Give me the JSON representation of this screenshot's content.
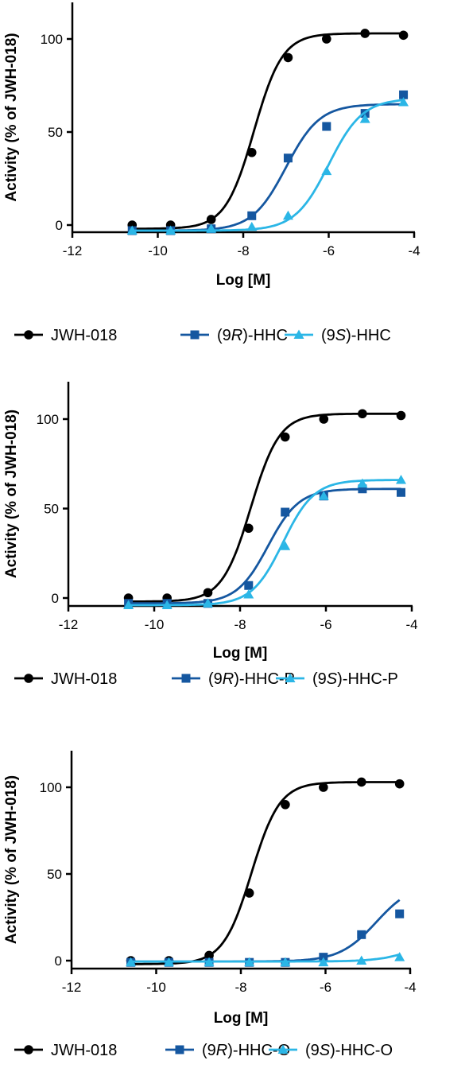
{
  "colors": {
    "jwh": "#000000",
    "r": "#1557a0",
    "s": "#2bb6e6"
  },
  "chart_data": [
    {
      "type": "scatter",
      "xlabel": "Log [M]",
      "ylabel": "Activity (% of JWH-018)",
      "xlim": [
        -12,
        -4
      ],
      "ylim": [
        -5,
        120
      ],
      "xticks": [
        "-12",
        "-10",
        "-8",
        "-6",
        "-4"
      ],
      "yticks": [
        "0",
        "50",
        "100"
      ],
      "x": [
        -10.6,
        -9.7,
        -8.75,
        -7.8,
        -6.95,
        -6.05,
        -5.15,
        -4.25
      ],
      "series": [
        {
          "name": "JWH-018",
          "marker": "circle",
          "values": [
            0,
            0,
            3,
            39,
            90,
            100,
            103,
            102
          ],
          "fit": {
            "bottom": -2,
            "top": 103,
            "logec50": -7.75,
            "hill": 1.3
          }
        },
        {
          "name": "(9R)-HHC",
          "name_parts": [
            "(9",
            "R",
            ")-HHC"
          ],
          "marker": "square",
          "values": [
            -3,
            -3,
            -2,
            5,
            36,
            53,
            60,
            70
          ],
          "fit": {
            "bottom": -3,
            "top": 65,
            "logec50": -7.0,
            "hill": 1.1
          }
        },
        {
          "name": "(9S)-HHC",
          "name_parts": [
            "(9",
            "S",
            ")-HHC"
          ],
          "marker": "triangle",
          "values": [
            -3,
            -3,
            -2,
            -1,
            5,
            29,
            57,
            66
          ],
          "fit": {
            "bottom": -3,
            "top": 68,
            "logec50": -6.0,
            "hill": 1.1
          }
        }
      ]
    },
    {
      "type": "scatter",
      "xlabel": "Log [M]",
      "ylabel": "Activity (% of JWH-018)",
      "xlim": [
        -12,
        -4
      ],
      "ylim": [
        -5,
        120
      ],
      "xticks": [
        "-12",
        "-10",
        "-8",
        "-6",
        "-4"
      ],
      "yticks": [
        "0",
        "50",
        "100"
      ],
      "x": [
        -10.6,
        -9.7,
        -8.75,
        -7.8,
        -6.95,
        -6.05,
        -5.15,
        -4.25
      ],
      "series": [
        {
          "name": "JWH-018",
          "marker": "circle",
          "values": [
            0,
            0,
            3,
            39,
            90,
            100,
            103,
            102
          ],
          "fit": {
            "bottom": -2,
            "top": 103,
            "logec50": -7.75,
            "hill": 1.3
          }
        },
        {
          "name": "(9R)-HHC-P",
          "name_parts": [
            "(9",
            "R",
            ")-HHC-P"
          ],
          "marker": "square",
          "values": [
            -3,
            -3,
            -3,
            7,
            48,
            57,
            61,
            59
          ],
          "fit": {
            "bottom": -3,
            "top": 61,
            "logec50": -7.35,
            "hill": 1.2
          }
        },
        {
          "name": "(9S)-HHC-P",
          "name_parts": [
            "(9",
            "S",
            ")-HHC-P"
          ],
          "marker": "triangle",
          "values": [
            -4,
            -4,
            -3,
            2,
            29,
            57,
            64,
            66
          ],
          "fit": {
            "bottom": -4,
            "top": 66,
            "logec50": -7.0,
            "hill": 1.2
          }
        }
      ]
    },
    {
      "type": "scatter",
      "xlabel": "Log [M]",
      "ylabel": "Activity (% of JWH-018)",
      "xlim": [
        -12,
        -4
      ],
      "ylim": [
        -5,
        120
      ],
      "xticks": [
        "-12",
        "-10",
        "-8",
        "-6",
        "-4"
      ],
      "yticks": [
        "0",
        "50",
        "100"
      ],
      "x": [
        -10.6,
        -9.7,
        -8.75,
        -7.8,
        -6.95,
        -6.05,
        -5.15,
        -4.25
      ],
      "series": [
        {
          "name": "JWH-018",
          "marker": "circle",
          "values": [
            0,
            0,
            3,
            39,
            90,
            100,
            103,
            102
          ],
          "fit": {
            "bottom": -2,
            "top": 103,
            "logec50": -7.75,
            "hill": 1.3
          }
        },
        {
          "name": "(9R)-HHC-O",
          "name_parts": [
            "(9",
            "R",
            ")-HHC-O"
          ],
          "marker": "square",
          "values": [
            -1,
            -1,
            -1,
            -1,
            -1,
            2,
            15,
            27
          ],
          "fit": {
            "bottom": -0.5,
            "top": 45,
            "logec50": -4.8,
            "hill": 1.0
          }
        },
        {
          "name": "(9S)-HHC-O",
          "name_parts": [
            "(9",
            "S",
            ")-HHC-O"
          ],
          "marker": "triangle",
          "values": [
            -1,
            -1,
            -1,
            -1,
            -1,
            -1,
            0,
            2
          ],
          "fit": {
            "bottom": -0.5,
            "top": 15,
            "logec50": -3.8,
            "hill": 1.0
          }
        }
      ]
    }
  ]
}
